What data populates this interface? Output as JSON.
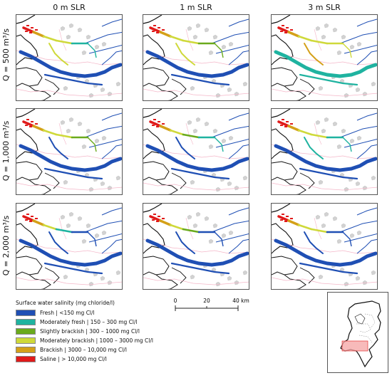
{
  "columns": [
    "0 m SLR",
    "1 m SLR",
    "3 m SLR"
  ],
  "rows": [
    "Q = 500 m³/s",
    "Q = 1,000 m³/s",
    "Q = 2,000 m³/s"
  ],
  "legend": {
    "title": "Surface water salinity (mg chloride/l)",
    "items": [
      {
        "label": "Fresh | <150 mg Cl/l",
        "color": "#1f4fb4"
      },
      {
        "label": "Moderately fresh | 150 – 300 mg Cl/l",
        "color": "#1fb3a0"
      },
      {
        "label": "Slightly brackish | 300 – 1000 mg Cl/l",
        "color": "#6aaa1c"
      },
      {
        "label": "Moderately brackish | 1000 – 3000 mg Cl/l",
        "color": "#cfd93a"
      },
      {
        "label": "Brackish | 3000 – 10,000 mg Cl/l",
        "color": "#d4a019"
      },
      {
        "label": "Saline | > 10,000 mg Cl/l",
        "color": "#e01a1a"
      }
    ]
  },
  "scale": {
    "ticks": [
      "0",
      "20",
      "40 km"
    ]
  },
  "panels": [
    {
      "col": 0,
      "row": 0,
      "north_colors": [
        "#e01a1a",
        "#d4a019",
        "#cfd93a",
        "#cfd93a",
        "#1fb3a0"
      ],
      "south_color": "#1f4fb4",
      "mid_color": "#cfd93a"
    },
    {
      "col": 1,
      "row": 0,
      "north_colors": [
        "#e01a1a",
        "#d4a019",
        "#cfd93a",
        "#cfd93a",
        "#6aaa1c"
      ],
      "south_color": "#1f4fb4",
      "mid_color": "#cfd93a"
    },
    {
      "col": 2,
      "row": 0,
      "north_colors": [
        "#e01a1a",
        "#d4a019",
        "#cfd93a",
        "#cfd93a",
        "#cfd93a"
      ],
      "south_color": "#1fb3a0",
      "mid_color": "#d4a019"
    },
    {
      "col": 0,
      "row": 1,
      "north_colors": [
        "#e01a1a",
        "#d4a019",
        "#cfd93a",
        "#cfd93a",
        "#6aaa1c"
      ],
      "south_color": "#1f4fb4",
      "mid_color": "#1f4fb4"
    },
    {
      "col": 1,
      "row": 1,
      "north_colors": [
        "#e01a1a",
        "#d4a019",
        "#cfd93a",
        "#6aaa1c",
        "#1fb3a0"
      ],
      "south_color": "#1f4fb4",
      "mid_color": "#1f4fb4"
    },
    {
      "col": 2,
      "row": 1,
      "north_colors": [
        "#e01a1a",
        "#d4a019",
        "#cfd93a",
        "#cfd93a",
        "#1fb3a0"
      ],
      "south_color": "#1f4fb4",
      "mid_color": "#1fb3a0"
    },
    {
      "col": 0,
      "row": 2,
      "north_colors": [
        "#e01a1a",
        "#d4a019",
        "#cfd93a",
        "#1fb3a0",
        "#1f4fb4"
      ],
      "south_color": "#1f4fb4",
      "mid_color": "#1f4fb4"
    },
    {
      "col": 1,
      "row": 2,
      "north_colors": [
        "#e01a1a",
        "#d4a019",
        "#cfd93a",
        "#6aaa1c",
        "#1f4fb4"
      ],
      "south_color": "#1f4fb4",
      "mid_color": "#1f4fb4"
    },
    {
      "col": 2,
      "row": 2,
      "north_colors": [
        "#e01a1a",
        "#d4a019",
        "#cfd93a",
        "#cfd93a",
        "#1f4fb4"
      ],
      "south_color": "#1f4fb4",
      "mid_color": "#1f4fb4"
    }
  ]
}
